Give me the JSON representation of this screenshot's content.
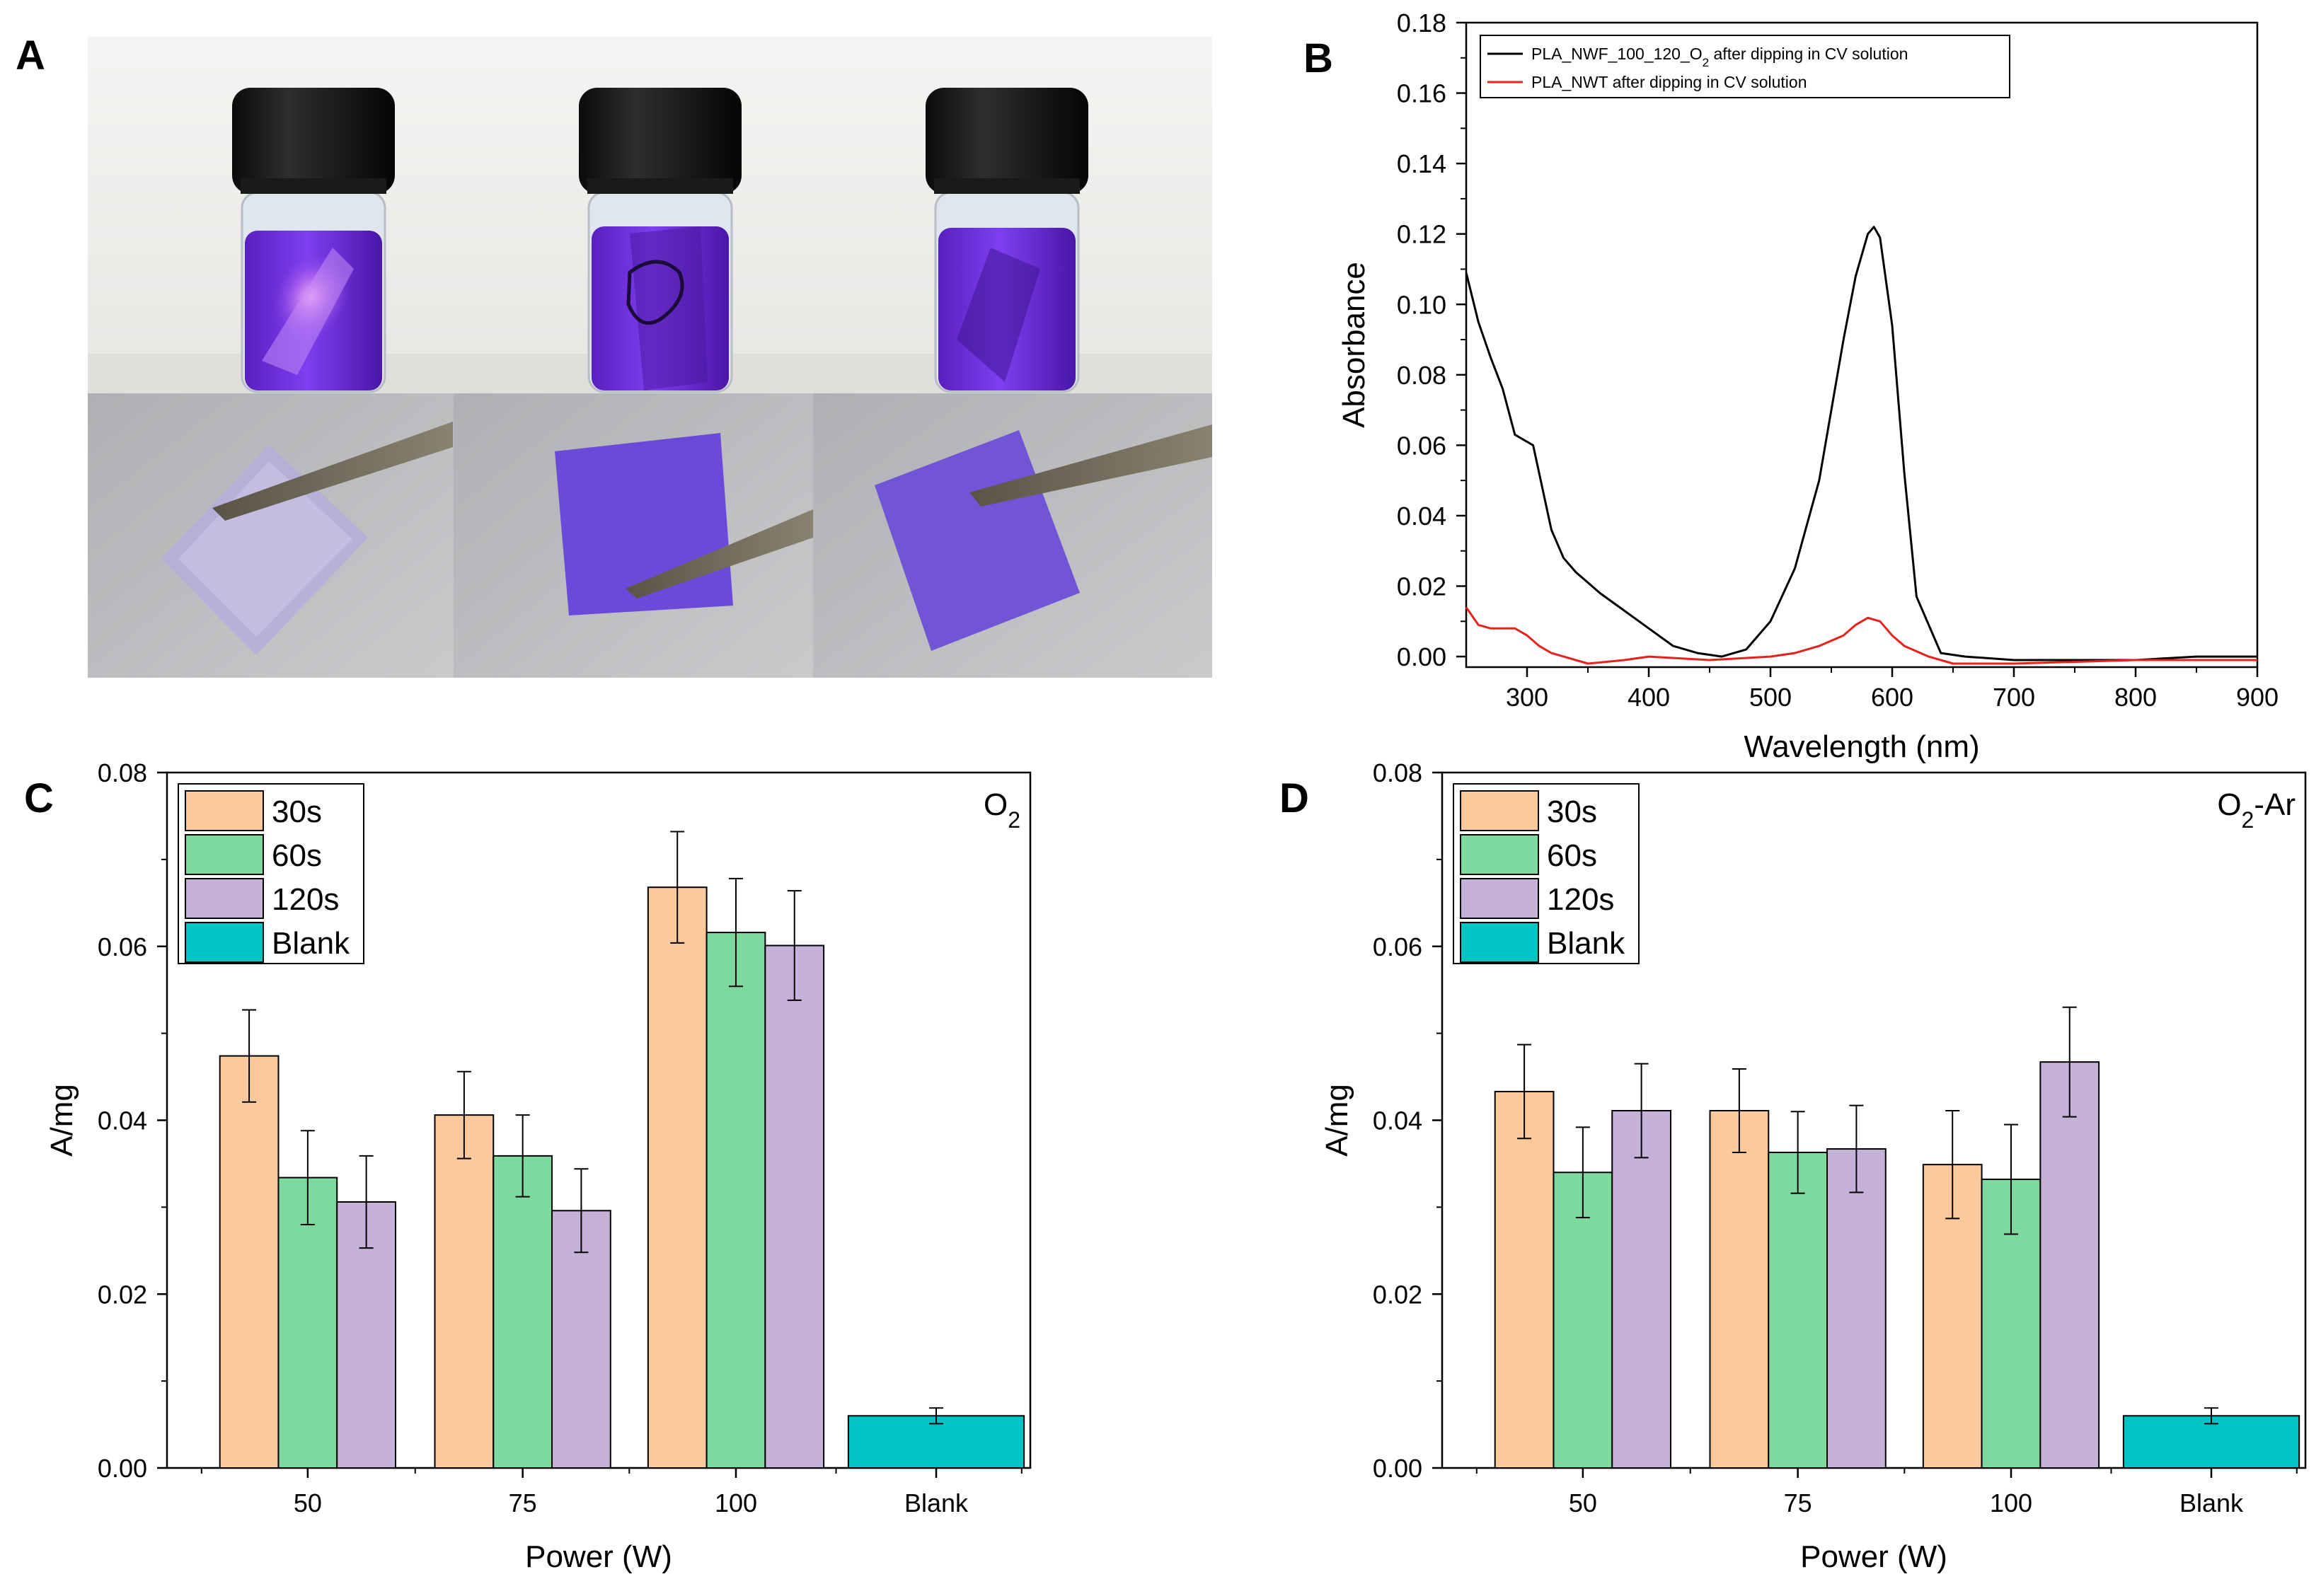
{
  "panels": {
    "A": "A",
    "B": "B",
    "C": "C",
    "D": "D"
  },
  "chart_data": [
    {
      "panel": "B",
      "type": "line",
      "title": "",
      "xlabel": "Wavelength (nm)",
      "ylabel": "Absorbance",
      "xlim": [
        250,
        900
      ],
      "ylim": [
        -0.003,
        0.18
      ],
      "x_ticks": [
        300,
        400,
        500,
        600,
        700,
        800,
        900
      ],
      "y_ticks": [
        0.0,
        0.02,
        0.04,
        0.06,
        0.08,
        0.1,
        0.12,
        0.14,
        0.16,
        0.18
      ],
      "y_tick_labels": [
        "0.00",
        "0.02",
        "0.04",
        "0.06",
        "0.08",
        "0.10",
        "0.12",
        "0.14",
        "0.16",
        "0.18"
      ],
      "legend_position": "top-left",
      "series": [
        {
          "name": "PLA_NWF_100_120_O2 after dipping in CV solution",
          "color": "#000000",
          "x": [
            250,
            260,
            270,
            280,
            290,
            300,
            305,
            310,
            320,
            330,
            340,
            350,
            360,
            380,
            400,
            420,
            440,
            460,
            480,
            500,
            520,
            540,
            560,
            570,
            580,
            585,
            590,
            600,
            610,
            620,
            640,
            660,
            700,
            750,
            800,
            850,
            900
          ],
          "y": [
            0.109,
            0.095,
            0.085,
            0.076,
            0.063,
            0.061,
            0.06,
            0.052,
            0.036,
            0.028,
            0.024,
            0.021,
            0.018,
            0.013,
            0.008,
            0.003,
            0.001,
            0.0,
            0.002,
            0.01,
            0.025,
            0.05,
            0.09,
            0.108,
            0.12,
            0.122,
            0.119,
            0.094,
            0.052,
            0.017,
            0.001,
            0.0,
            -0.001,
            -0.001,
            -0.001,
            0.0,
            0.0
          ]
        },
        {
          "name": "PLA_NWT after dipping in CV solution",
          "color": "#e8211d",
          "x": [
            250,
            260,
            270,
            290,
            300,
            310,
            320,
            350,
            380,
            400,
            450,
            500,
            520,
            540,
            560,
            570,
            580,
            590,
            600,
            610,
            630,
            650,
            700,
            800,
            900
          ],
          "y": [
            0.014,
            0.009,
            0.008,
            0.008,
            0.006,
            0.003,
            0.001,
            -0.002,
            -0.001,
            0.0,
            -0.001,
            0.0,
            0.001,
            0.003,
            0.006,
            0.009,
            0.011,
            0.01,
            0.006,
            0.003,
            0.0,
            -0.002,
            -0.002,
            -0.001,
            -0.001
          ]
        }
      ]
    },
    {
      "panel": "C",
      "type": "bar",
      "title": "",
      "annotation": "O2",
      "xlabel": "Power (W)",
      "ylabel": "A/mg",
      "ylim": [
        0,
        0.08
      ],
      "y_ticks": [
        0.0,
        0.02,
        0.04,
        0.06,
        0.08
      ],
      "y_tick_labels": [
        "0.00",
        "0.02",
        "0.04",
        "0.06",
        "0.08"
      ],
      "categories": [
        "50",
        "75",
        "100",
        "Blank"
      ],
      "legend_position": "top-left",
      "series": [
        {
          "name": "30s",
          "color": "#fcc99a",
          "values": [
            0.0474,
            0.0406,
            0.0668,
            null
          ],
          "errors": [
            0.0053,
            0.005,
            0.0064,
            null
          ]
        },
        {
          "name": "60s",
          "color": "#7dd99d",
          "values": [
            0.0334,
            0.0359,
            0.0616,
            null
          ],
          "errors": [
            0.0054,
            0.0047,
            0.0062,
            null
          ]
        },
        {
          "name": "120s",
          "color": "#c6b1d8",
          "values": [
            0.0306,
            0.0296,
            0.0601,
            null
          ],
          "errors": [
            0.0053,
            0.0048,
            0.0063,
            null
          ]
        },
        {
          "name": "Blank",
          "color": "#00c4c4",
          "values": [
            null,
            null,
            null,
            0.006
          ],
          "errors": [
            null,
            null,
            null,
            0.0009
          ]
        }
      ]
    },
    {
      "panel": "D",
      "type": "bar",
      "title": "",
      "annotation": "O2-Ar",
      "xlabel": "Power (W)",
      "ylabel": "A/mg",
      "ylim": [
        0,
        0.08
      ],
      "y_ticks": [
        0.0,
        0.02,
        0.04,
        0.06,
        0.08
      ],
      "y_tick_labels": [
        "0.00",
        "0.02",
        "0.04",
        "0.06",
        "0.08"
      ],
      "categories": [
        "50",
        "75",
        "100",
        "Blank"
      ],
      "legend_position": "top-left",
      "series": [
        {
          "name": "30s",
          "color": "#fcc99a",
          "values": [
            0.0433,
            0.0411,
            0.0349,
            null
          ],
          "errors": [
            0.0054,
            0.0048,
            0.0062,
            null
          ]
        },
        {
          "name": "60s",
          "color": "#7dd99d",
          "values": [
            0.034,
            0.0363,
            0.0332,
            null
          ],
          "errors": [
            0.0052,
            0.0047,
            0.0063,
            null
          ]
        },
        {
          "name": "120s",
          "color": "#c6b1d8",
          "values": [
            0.0411,
            0.0367,
            0.0467,
            null
          ],
          "errors": [
            0.0054,
            0.005,
            0.0063,
            null
          ]
        },
        {
          "name": "Blank",
          "color": "#00c4c4",
          "values": [
            null,
            null,
            null,
            0.006
          ],
          "errors": [
            null,
            null,
            null,
            0.0009
          ]
        }
      ]
    }
  ]
}
